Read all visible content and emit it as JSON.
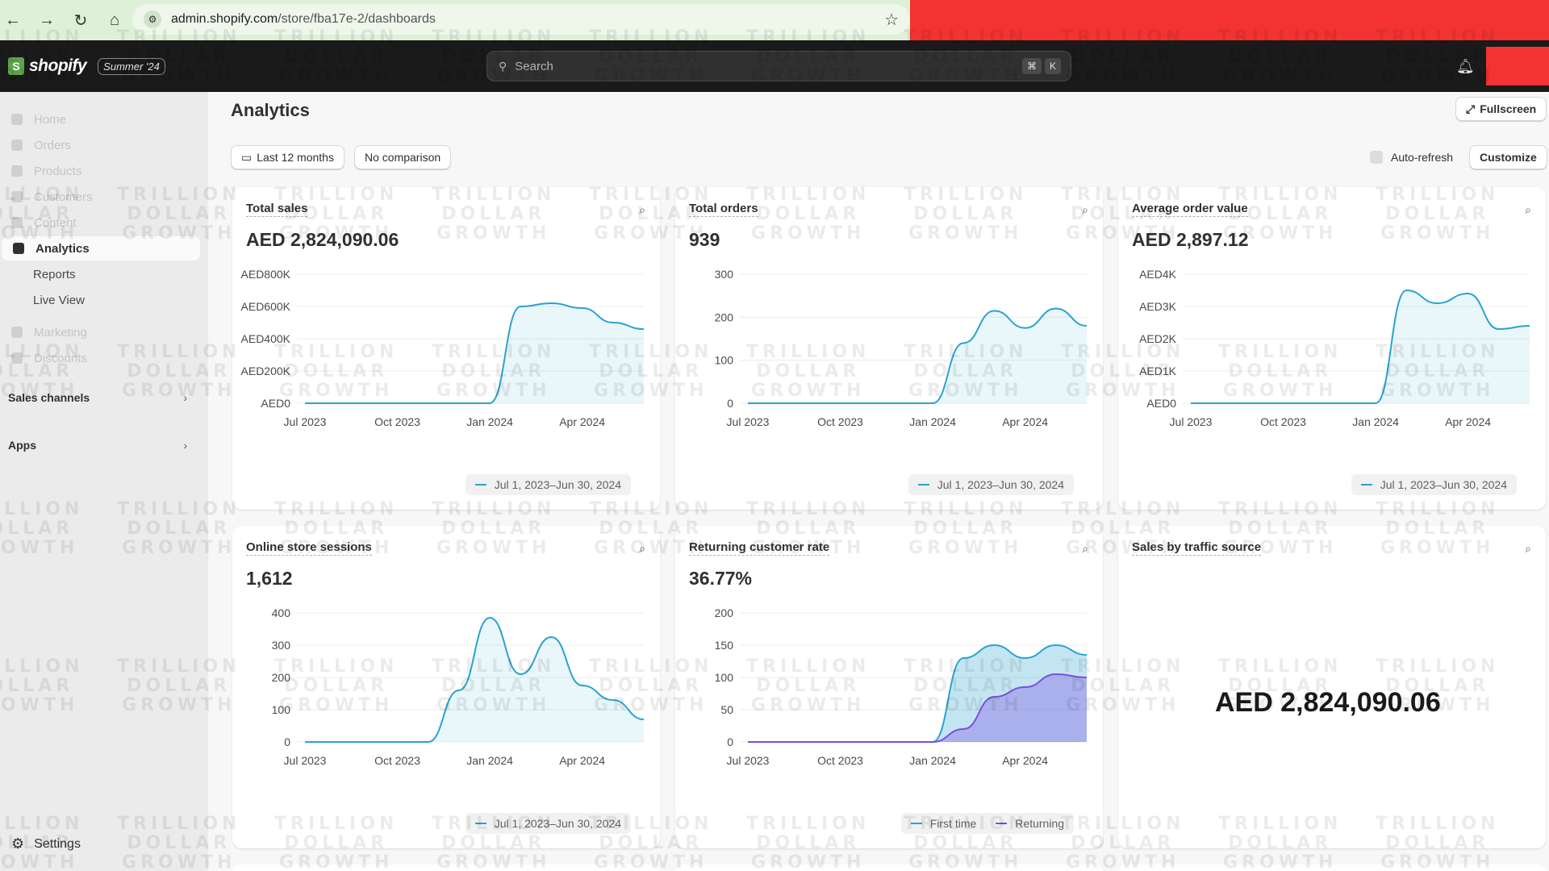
{
  "browser": {
    "url_host": "admin.shopify.com",
    "url_path": "/store/fba17e-2/dashboards"
  },
  "topbar": {
    "brand": "shopify",
    "edition": "Summer '24",
    "search_placeholder": "Search",
    "shortcut_keys": [
      "⌘",
      "K"
    ]
  },
  "sidebar": {
    "items": [
      {
        "label": "Home",
        "icon": "home-icon"
      },
      {
        "label": "Orders",
        "icon": "inbox-icon"
      },
      {
        "label": "Products",
        "icon": "tag-icon"
      },
      {
        "label": "Customers",
        "icon": "person-icon"
      },
      {
        "label": "Content",
        "icon": "content-icon"
      },
      {
        "label": "Analytics",
        "icon": "bar-chart-icon",
        "active": true
      }
    ],
    "sub_items": [
      "Reports",
      "Live View"
    ],
    "items2": [
      {
        "label": "Marketing",
        "icon": "target-icon"
      },
      {
        "label": "Discounts",
        "icon": "discount-icon"
      }
    ],
    "sales_channels": "Sales channels",
    "apps": "Apps",
    "settings": "Settings"
  },
  "page": {
    "title": "Analytics",
    "fullscreen": "Fullscreen",
    "date_range": "Last 12 months",
    "comparison": "No comparison",
    "auto_refresh": "Auto-refresh",
    "customize": "Customize"
  },
  "watermark": [
    "TRILLION",
    "DOLLAR",
    "GROWTH"
  ],
  "colors": {
    "line": "#29a3cf",
    "purple": "#7b4ee0",
    "fill": "#dceef6"
  },
  "cards": [
    {
      "title": "Total sales",
      "value": "AED 2,824,090.06",
      "legend": "Jul 1, 2023–Jun 30, 2024",
      "chart_data": {
        "type": "line",
        "x": [
          "Jul 2023",
          "Aug 2023",
          "Sep 2023",
          "Oct 2023",
          "Nov 2023",
          "Dec 2023",
          "Jan 2024",
          "Feb 2024",
          "Mar 2024",
          "Apr 2024",
          "May 2024",
          "Jun 2024"
        ],
        "values": [
          0,
          0,
          0,
          0,
          0,
          0,
          0,
          600000,
          620000,
          590000,
          500000,
          460000
        ],
        "yticks": [
          "AED0",
          "AED200K",
          "AED400K",
          "AED600K",
          "AED800K"
        ],
        "ylim": [
          0,
          800000
        ],
        "xticks": [
          "Jul 2023",
          "Oct 2023",
          "Jan 2024",
          "Apr 2024"
        ]
      }
    },
    {
      "title": "Total orders",
      "value": "939",
      "legend": "Jul 1, 2023–Jun 30, 2024",
      "chart_data": {
        "type": "line",
        "x": [
          "Jul 2023",
          "Aug 2023",
          "Sep 2023",
          "Oct 2023",
          "Nov 2023",
          "Dec 2023",
          "Jan 2024",
          "Feb 2024",
          "Mar 2024",
          "Apr 2024",
          "May 2024",
          "Jun 2024"
        ],
        "values": [
          0,
          0,
          0,
          0,
          0,
          0,
          0,
          140,
          215,
          175,
          220,
          180
        ],
        "yticks": [
          "0",
          "100",
          "200",
          "300"
        ],
        "ylim": [
          0,
          300
        ],
        "xticks": [
          "Jul 2023",
          "Oct 2023",
          "Jan 2024",
          "Apr 2024"
        ]
      }
    },
    {
      "title": "Average order value",
      "value": "AED 2,897.12",
      "legend": "Jul 1, 2023–Jun 30, 2024",
      "chart_data": {
        "type": "line",
        "x": [
          "Jul 2023",
          "Aug 2023",
          "Sep 2023",
          "Oct 2023",
          "Nov 2023",
          "Dec 2023",
          "Jan 2024",
          "Feb 2024",
          "Mar 2024",
          "Apr 2024",
          "May 2024",
          "Jun 2024"
        ],
        "values": [
          0,
          0,
          0,
          0,
          0,
          0,
          0,
          3500,
          3100,
          3400,
          2300,
          2400
        ],
        "yticks": [
          "AED0",
          "AED1K",
          "AED2K",
          "AED3K",
          "AED4K"
        ],
        "ylim": [
          0,
          4000
        ],
        "xticks": [
          "Jul 2023",
          "Oct 2023",
          "Jan 2024",
          "Apr 2024"
        ]
      }
    },
    {
      "title": "Online store sessions",
      "value": "1,612",
      "legend": "Jul 1, 2023–Jun 30, 2024",
      "chart_data": {
        "type": "line",
        "x": [
          "Jul 2023",
          "Aug 2023",
          "Sep 2023",
          "Oct 2023",
          "Nov 2023",
          "Dec 2023",
          "Jan 2024",
          "Feb 2024",
          "Mar 2024",
          "Apr 2024",
          "May 2024",
          "Jun 2024"
        ],
        "values": [
          0,
          0,
          0,
          0,
          0,
          160,
          385,
          210,
          325,
          175,
          130,
          70
        ],
        "yticks": [
          "0",
          "100",
          "200",
          "300",
          "400"
        ],
        "ylim": [
          0,
          400
        ],
        "xticks": [
          "Jul 2023",
          "Oct 2023",
          "Jan 2024",
          "Apr 2024"
        ]
      }
    },
    {
      "title": "Returning customer rate",
      "value": "36.77%",
      "legend_series": [
        "First time",
        "Returning"
      ],
      "chart_data": {
        "type": "area",
        "x": [
          "Jul 2023",
          "Aug 2023",
          "Sep 2023",
          "Oct 2023",
          "Nov 2023",
          "Dec 2023",
          "Jan 2024",
          "Feb 2024",
          "Mar 2024",
          "Apr 2024",
          "May 2024",
          "Jun 2024"
        ],
        "series": [
          {
            "name": "First time",
            "values": [
              0,
              0,
              0,
              0,
              0,
              0,
              0,
              130,
              150,
              130,
              150,
              135
            ]
          },
          {
            "name": "Returning",
            "values": [
              0,
              0,
              0,
              0,
              0,
              0,
              0,
              20,
              70,
              85,
              105,
              100
            ]
          }
        ],
        "yticks": [
          "0",
          "50",
          "100",
          "150",
          "200"
        ],
        "ylim": [
          0,
          200
        ],
        "xticks": [
          "Jul 2023",
          "Oct 2023",
          "Jan 2024",
          "Apr 2024"
        ]
      }
    },
    {
      "title": "Sales by traffic source",
      "value": "AED 2,824,090.06"
    }
  ]
}
